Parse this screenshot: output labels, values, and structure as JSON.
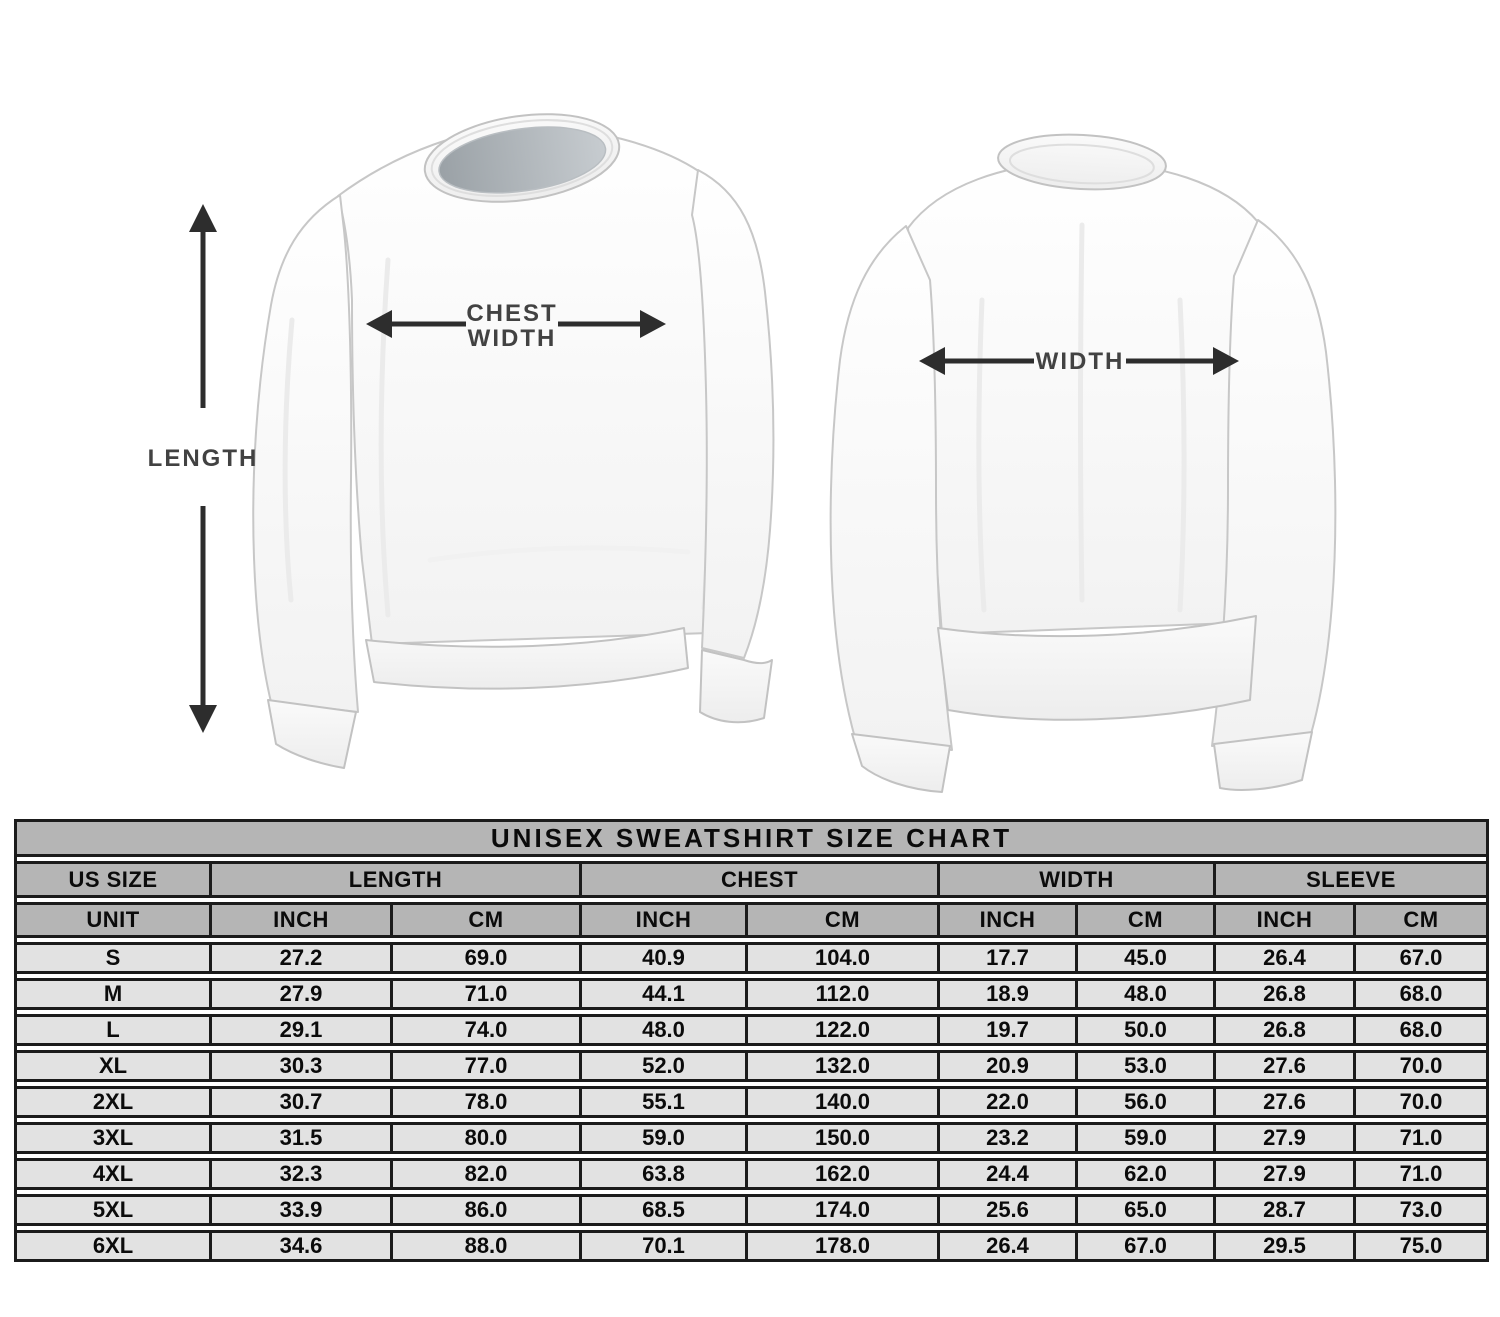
{
  "diagram": {
    "length_label": "LENGTH",
    "chest_width_label_line1": "CHEST",
    "chest_width_label_line2": "WIDTH",
    "back_width_label": "WIDTH",
    "arrow_color": "#2d2d2d",
    "label_color": "#424242"
  },
  "chart_data": {
    "type": "table",
    "title": "UNISEX SWEATSHIRT SIZE CHART",
    "header": {
      "size_column": "US SIZE",
      "groups": [
        "LENGTH",
        "CHEST",
        "WIDTH",
        "SLEEVE"
      ],
      "unit_label": "UNIT",
      "units": [
        "INCH",
        "CM",
        "INCH",
        "CM",
        "INCH",
        "CM",
        "INCH",
        "CM"
      ]
    },
    "rows": [
      {
        "size": "S",
        "length_inch": "27.2",
        "length_cm": "69.0",
        "chest_inch": "40.9",
        "chest_cm": "104.0",
        "width_inch": "17.7",
        "width_cm": "45.0",
        "sleeve_inch": "26.4",
        "sleeve_cm": "67.0"
      },
      {
        "size": "M",
        "length_inch": "27.9",
        "length_cm": "71.0",
        "chest_inch": "44.1",
        "chest_cm": "112.0",
        "width_inch": "18.9",
        "width_cm": "48.0",
        "sleeve_inch": "26.8",
        "sleeve_cm": "68.0"
      },
      {
        "size": "L",
        "length_inch": "29.1",
        "length_cm": "74.0",
        "chest_inch": "48.0",
        "chest_cm": "122.0",
        "width_inch": "19.7",
        "width_cm": "50.0",
        "sleeve_inch": "26.8",
        "sleeve_cm": "68.0"
      },
      {
        "size": "XL",
        "length_inch": "30.3",
        "length_cm": "77.0",
        "chest_inch": "52.0",
        "chest_cm": "132.0",
        "width_inch": "20.9",
        "width_cm": "53.0",
        "sleeve_inch": "27.6",
        "sleeve_cm": "70.0"
      },
      {
        "size": "2XL",
        "length_inch": "30.7",
        "length_cm": "78.0",
        "chest_inch": "55.1",
        "chest_cm": "140.0",
        "width_inch": "22.0",
        "width_cm": "56.0",
        "sleeve_inch": "27.6",
        "sleeve_cm": "70.0"
      },
      {
        "size": "3XL",
        "length_inch": "31.5",
        "length_cm": "80.0",
        "chest_inch": "59.0",
        "chest_cm": "150.0",
        "width_inch": "23.2",
        "width_cm": "59.0",
        "sleeve_inch": "27.9",
        "sleeve_cm": "71.0"
      },
      {
        "size": "4XL",
        "length_inch": "32.3",
        "length_cm": "82.0",
        "chest_inch": "63.8",
        "chest_cm": "162.0",
        "width_inch": "24.4",
        "width_cm": "62.0",
        "sleeve_inch": "27.9",
        "sleeve_cm": "71.0"
      },
      {
        "size": "5XL",
        "length_inch": "33.9",
        "length_cm": "86.0",
        "chest_inch": "68.5",
        "chest_cm": "174.0",
        "width_inch": "25.6",
        "width_cm": "65.0",
        "sleeve_inch": "28.7",
        "sleeve_cm": "73.0"
      },
      {
        "size": "6XL",
        "length_inch": "34.6",
        "length_cm": "88.0",
        "chest_inch": "70.1",
        "chest_cm": "178.0",
        "width_inch": "26.4",
        "width_cm": "67.0",
        "sleeve_inch": "29.5",
        "sleeve_cm": "75.0"
      }
    ],
    "colors": {
      "header_band": "#b5b5b5",
      "row_band": "#e2e2e2",
      "border": "#1b1b1b",
      "text": "#0b0b0b"
    }
  }
}
